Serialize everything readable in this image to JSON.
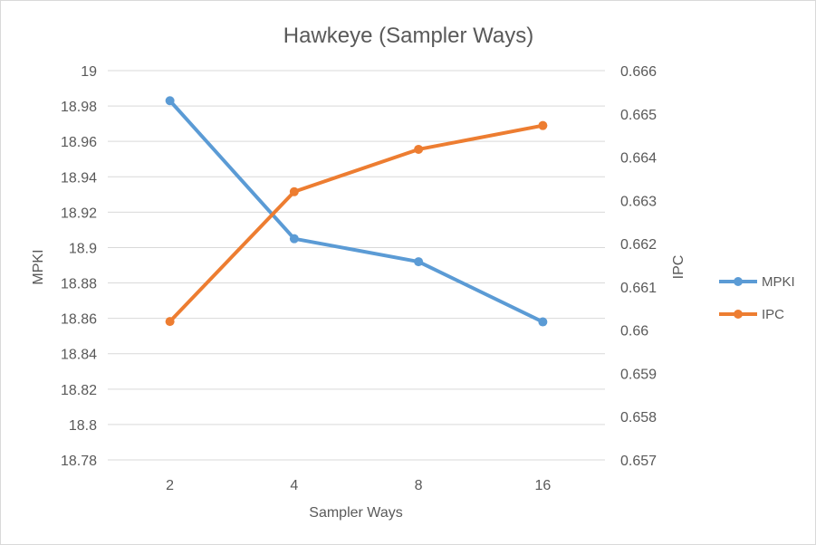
{
  "chart_data": {
    "type": "line",
    "title": "Hawkeye (Sampler Ways)",
    "xlabel": "Sampler Ways",
    "ylabel": "MPKI",
    "y2label": "IPC",
    "categories": [
      "2",
      "4",
      "8",
      "16"
    ],
    "ylim": [
      18.78,
      19
    ],
    "y_ticks": [
      "18.78",
      "18.8",
      "18.82",
      "18.84",
      "18.86",
      "18.88",
      "18.9",
      "18.92",
      "18.94",
      "18.96",
      "18.98",
      "19"
    ],
    "y2lim": [
      0.657,
      0.666
    ],
    "y2_ticks": [
      "0.657",
      "0.658",
      "0.659",
      "0.66",
      "0.661",
      "0.662",
      "0.663",
      "0.664",
      "0.665",
      "0.666"
    ],
    "grid": true,
    "legend_position": "right",
    "series": [
      {
        "name": "MPKI",
        "axis": "left",
        "color": "#5b9bd5",
        "values": [
          18.983,
          18.905,
          18.892,
          18.858
        ]
      },
      {
        "name": "IPC",
        "axis": "right",
        "color": "#ed7d31",
        "values": [
          0.6602,
          0.6632,
          0.66418,
          0.66473
        ]
      }
    ]
  }
}
